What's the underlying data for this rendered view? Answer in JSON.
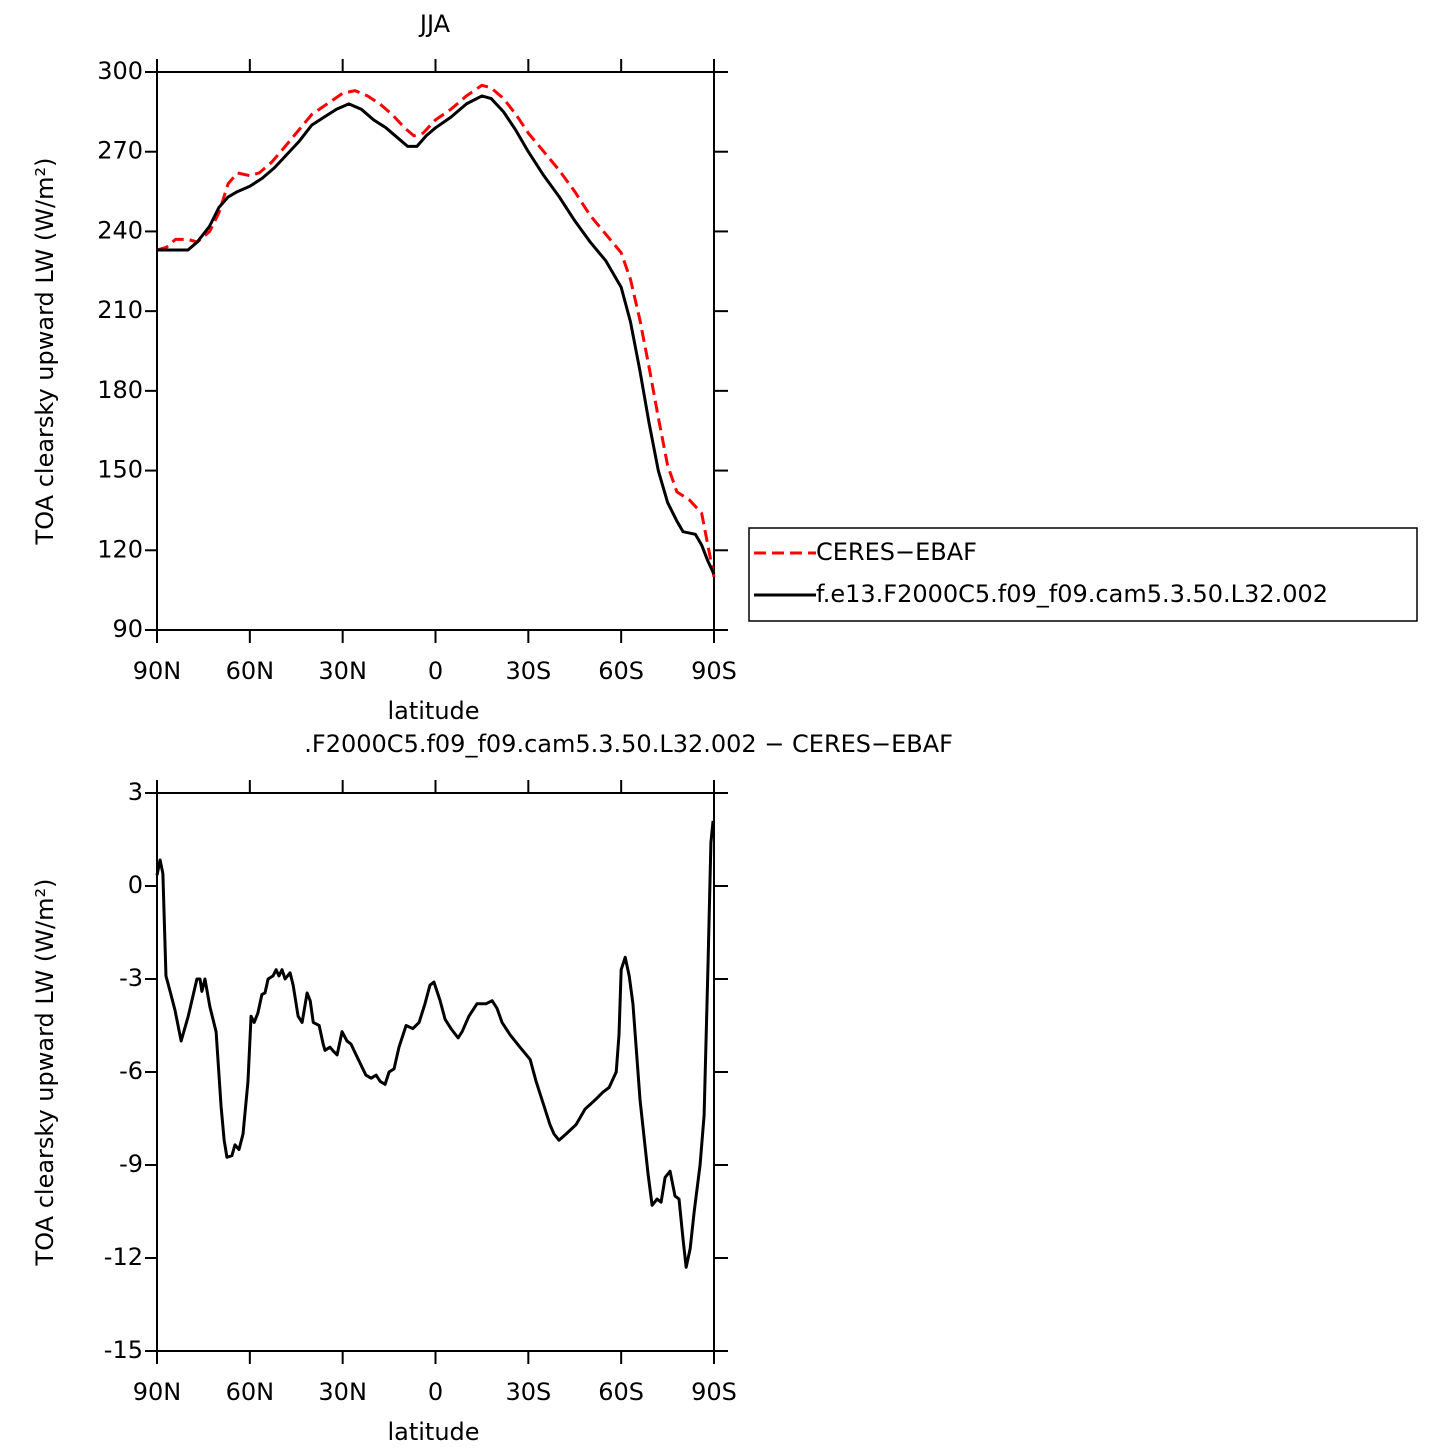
{
  "chart_data": [
    {
      "type": "line",
      "title": "JJA",
      "xlabel": "latitude",
      "ylabel": "TOA clearsky upward LW (W/m²)",
      "xlim": [
        90,
        -90
      ],
      "xticks": [
        {
          "value": 90,
          "label": "90N"
        },
        {
          "value": 60,
          "label": "60N"
        },
        {
          "value": 30,
          "label": "30N"
        },
        0,
        {
          "value": -30,
          "label": "30S"
        },
        {
          "value": -60,
          "label": "60S"
        },
        {
          "value": -90,
          "label": "90S"
        }
      ],
      "ylim": [
        90,
        300
      ],
      "yticks": [
        90,
        120,
        150,
        180,
        210,
        240,
        270,
        300
      ],
      "legend": "outside right",
      "series": [
        {
          "name": "CERES−EBAF",
          "color": "#ff0000",
          "line_style": "dashed",
          "x": [
            90,
            87,
            84,
            80,
            77,
            73,
            70,
            67,
            64,
            60,
            57,
            53,
            50,
            45,
            40,
            35,
            30,
            26,
            22,
            18,
            14,
            10,
            7,
            4,
            0,
            -5,
            -10,
            -15,
            -18,
            -22,
            -26,
            -30,
            -35,
            -40,
            -45,
            -50,
            -55,
            -60,
            -63,
            -66,
            -69,
            -72,
            -75,
            -78,
            -82,
            -86,
            -88,
            -90
          ],
          "values": [
            233,
            234,
            237,
            237,
            236,
            240,
            247,
            258,
            262,
            261,
            262,
            266,
            270,
            277,
            284,
            288,
            292,
            293,
            291,
            288,
            284,
            279,
            276,
            277,
            282,
            286,
            291,
            295,
            294,
            290,
            284,
            277,
            270,
            263,
            255,
            246,
            239,
            232,
            222,
            207,
            189,
            170,
            152,
            142,
            139,
            134,
            122,
            110
          ]
        },
        {
          "name": "f.e13.F2000C5.f09_f09.cam5.3.50.L32.002",
          "color": "#000000",
          "line_style": "solid",
          "x": [
            90,
            85,
            80,
            77,
            73,
            70,
            67,
            64,
            60,
            56,
            52,
            48,
            44,
            40,
            36,
            32,
            28,
            24,
            20,
            16,
            12,
            9,
            6,
            3,
            0,
            -5,
            -10,
            -15,
            -18,
            -22,
            -26,
            -30,
            -35,
            -40,
            -45,
            -50,
            -55,
            -60,
            -63,
            -66,
            -69,
            -72,
            -75,
            -78,
            -80,
            -84,
            -86,
            -88,
            -90
          ],
          "values": [
            233,
            233,
            233,
            236,
            242,
            249,
            253,
            255,
            257,
            260,
            264,
            269,
            274,
            280,
            283,
            286,
            288,
            286,
            282,
            279,
            275,
            272,
            272,
            276,
            279,
            283,
            288,
            291,
            290,
            285,
            278,
            270,
            261,
            253,
            244,
            236,
            229,
            219,
            206,
            188,
            168,
            150,
            138,
            131,
            127,
            126,
            122,
            116,
            111
          ]
        }
      ]
    },
    {
      "type": "line",
      "title": ".F2000C5.f09_f09.cam5.3.50.L32.002 − CERES−EBAF",
      "xlabel": "latitude",
      "ylabel": "TOA clearsky upward LW (W/m²)",
      "xlim": [
        90,
        -90
      ],
      "xticks": [
        {
          "value": 90,
          "label": "90N"
        },
        {
          "value": 60,
          "label": "60N"
        },
        {
          "value": 30,
          "label": "30N"
        },
        0,
        {
          "value": -30,
          "label": "30S"
        },
        {
          "value": -60,
          "label": "60S"
        },
        {
          "value": -90,
          "label": "90S"
        }
      ],
      "ylim": [
        -15,
        3
      ],
      "yticks": [
        -15,
        -12,
        -9,
        -6,
        -3,
        0,
        3
      ],
      "series": [
        {
          "color": "#000000",
          "line_style": "solid",
          "x": [
            90.0,
            89.0,
            88.1,
            87.1,
            85.5,
            84.2,
            82.2,
            79.9,
            77.1,
            76.1,
            75.5,
            74.5,
            72.9,
            70.9,
            69.3,
            68.3,
            67.4,
            65.8,
            64.8,
            63.5,
            62.2,
            60.6,
            59.6,
            58.6,
            57.4,
            56.1,
            55.1,
            54.1,
            52.5,
            51.5,
            50.6,
            49.6,
            48.6,
            47.0,
            46.0,
            44.4,
            43.1,
            41.5,
            40.5,
            39.5,
            37.6,
            36.3,
            35.7,
            34.1,
            32.8,
            31.8,
            30.2,
            28.6,
            27.3,
            25.4,
            22.5,
            20.8,
            19.2,
            17.9,
            16.3,
            15.0,
            13.4,
            11.8,
            9.5,
            7.3,
            5.3,
            3.4,
            1.8,
            0.5,
            -1.5,
            -3.1,
            -5.0,
            -7.3,
            -8.6,
            -10.8,
            -13.4,
            -16.3,
            -18.3,
            -19.9,
            -21.5,
            -24.1,
            -27.3,
            -30.6,
            -32.5,
            -35.4,
            -37.0,
            -38.3,
            -39.9,
            -42.2,
            -45.4,
            -48.3,
            -51.6,
            -54.1,
            -56.1,
            -58.4,
            -59.3,
            -60.0,
            -61.3,
            -62.6,
            -63.8,
            -66.1,
            -68.7,
            -70.0,
            -71.6,
            -72.9,
            -74.2,
            -75.8,
            -77.4,
            -78.7,
            -80.0,
            -81.0,
            -82.3,
            -83.6,
            -85.5,
            -86.8,
            -88.1,
            -89.0,
            -89.7
          ],
          "values": [
            0.35,
            0.84,
            0.4,
            -2.9,
            -3.5,
            -4.0,
            -5.0,
            -4.2,
            -3.0,
            -3.0,
            -3.4,
            -3.0,
            -3.9,
            -4.7,
            -7.1,
            -8.2,
            -8.75,
            -8.7,
            -8.35,
            -8.5,
            -8.0,
            -6.3,
            -4.2,
            -4.4,
            -4.1,
            -3.5,
            -3.45,
            -3.0,
            -2.9,
            -2.7,
            -2.9,
            -2.7,
            -3.0,
            -2.8,
            -3.2,
            -4.2,
            -4.4,
            -3.45,
            -3.7,
            -4.4,
            -4.5,
            -5.1,
            -5.3,
            -5.2,
            -5.35,
            -5.45,
            -4.7,
            -5.0,
            -5.1,
            -5.5,
            -6.1,
            -6.2,
            -6.1,
            -6.3,
            -6.4,
            -6.0,
            -5.9,
            -5.2,
            -4.5,
            -4.6,
            -4.4,
            -3.8,
            -3.2,
            -3.1,
            -3.7,
            -4.3,
            -4.6,
            -4.9,
            -4.7,
            -4.2,
            -3.8,
            -3.8,
            -3.7,
            -3.95,
            -4.4,
            -4.8,
            -5.2,
            -5.6,
            -6.3,
            -7.2,
            -7.7,
            -8.0,
            -8.2,
            -8.0,
            -7.7,
            -7.2,
            -6.9,
            -6.65,
            -6.5,
            -6.0,
            -4.8,
            -2.7,
            -2.3,
            -2.9,
            -3.8,
            -6.9,
            -9.3,
            -10.3,
            -10.1,
            -10.2,
            -9.4,
            -9.2,
            -10.0,
            -10.1,
            -11.4,
            -12.3,
            -11.7,
            -10.5,
            -9.0,
            -7.4,
            -2.4,
            1.4,
            2.1
          ]
        }
      ]
    }
  ]
}
